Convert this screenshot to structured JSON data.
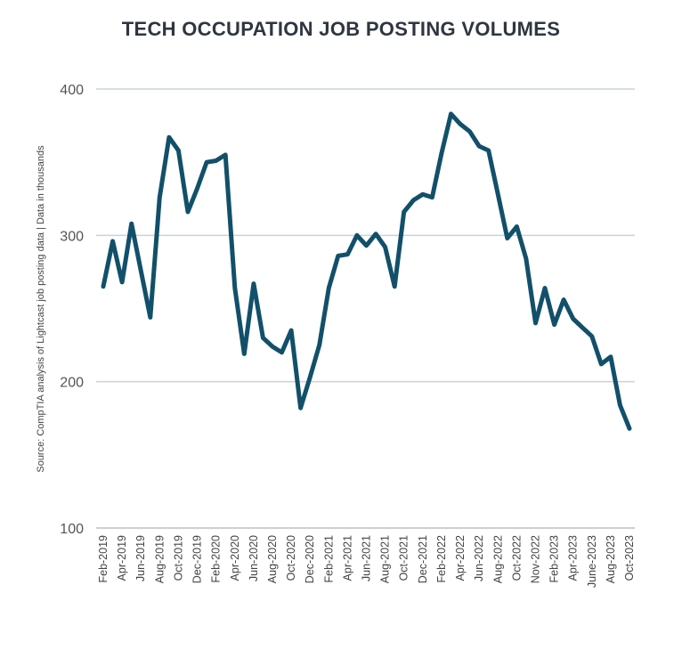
{
  "chart_data": {
    "type": "line",
    "title": "TECH OCCUPATION JOB POSTING VOLUMES",
    "side_note": "Source: CompTIA analysis of Lightcast job posting data | Data in thousands",
    "y_ticks": [
      100,
      200,
      300,
      400
    ],
    "ylim": [
      100,
      400
    ],
    "grid": true,
    "line_color": "#12506a",
    "grid_color": "#c8d3d8",
    "x_tick_labels": [
      "Feb-2019",
      "Apr-2019",
      "Jun-2019",
      "Aug-2019",
      "Oct-2019",
      "Dec-2019",
      "Feb-2020",
      "Apr-2020",
      "Jun-2020",
      "Aug-2020",
      "Oct-2020",
      "Dec-2020",
      "Feb-2021",
      "Apr-2021",
      "Jun-2021",
      "Aug-2021",
      "Oct-2021",
      "Dec-2021",
      "Feb-2022",
      "Apr-2022",
      "Jun-2022",
      "Aug-2022",
      "Oct-2022",
      "Nov-2022",
      "Feb-2023",
      "Apr-2023",
      "June-2023",
      "Aug-2023",
      "Oct-2023"
    ],
    "series": [
      {
        "values": [
          265,
          296,
          268,
          308,
          276,
          244,
          326,
          367,
          358,
          316,
          332,
          350,
          351,
          355,
          264,
          219,
          267,
          230,
          224,
          220,
          235,
          182,
          203,
          225,
          264,
          286,
          287,
          300,
          293,
          301,
          292,
          265,
          316,
          324,
          328,
          326,
          356,
          383,
          376,
          371,
          361,
          358,
          328,
          298,
          306,
          284,
          240,
          264,
          239,
          256,
          243,
          237,
          231,
          212,
          217,
          184,
          168
        ]
      }
    ]
  }
}
